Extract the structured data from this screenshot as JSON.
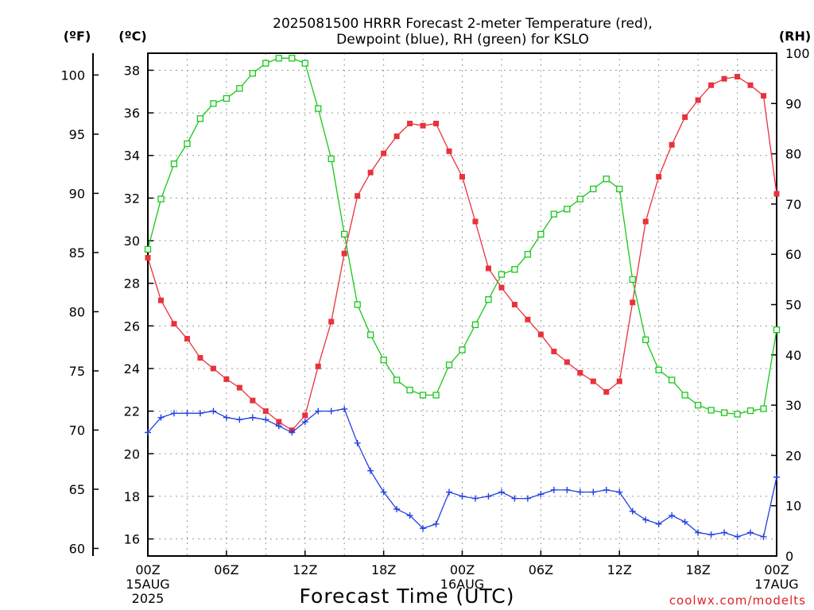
{
  "title_line1": "2025081500 HRRR Forecast 2-meter Temperature (red),",
  "title_line2": "Dewpoint (blue), RH (green) for KSLO",
  "units": {
    "fahrenheit": "(ºF)",
    "celsius": "(ºC)",
    "rh": "(RH)"
  },
  "xaxis_label": "Forecast Time (UTC)",
  "credit": "coolwx.com/modelts",
  "colors": {
    "temperature": "#e8323c",
    "dewpoint": "#2340e0",
    "rh": "#18c818"
  },
  "chart_data": {
    "type": "line",
    "x": [
      0,
      1,
      2,
      3,
      4,
      5,
      6,
      7,
      8,
      9,
      10,
      11,
      12,
      13,
      14,
      15,
      16,
      17,
      18,
      19,
      20,
      21,
      22,
      23,
      24,
      25,
      26,
      27,
      28,
      29,
      30,
      31,
      32,
      33,
      34,
      35,
      36,
      37,
      38,
      39,
      40,
      41,
      42,
      43,
      44,
      45,
      46,
      47,
      48
    ],
    "x_tick_hours": [
      0,
      6,
      12,
      18,
      24,
      30,
      36,
      42,
      48
    ],
    "x_tick_labels": [
      [
        "00Z",
        "15AUG",
        "2025"
      ],
      [
        "06Z"
      ],
      [
        "12Z"
      ],
      [
        "18Z"
      ],
      [
        "00Z",
        "16AUG"
      ],
      [
        "06Z"
      ],
      [
        "12Z"
      ],
      [
        "18Z"
      ],
      [
        "00Z",
        "17AUG"
      ]
    ],
    "y_celsius_range": [
      15.2,
      38.8
    ],
    "y_celsius_ticks": [
      16,
      18,
      20,
      22,
      24,
      26,
      28,
      30,
      32,
      34,
      36,
      38
    ],
    "y_fahrenheit_ticks": [
      60,
      65,
      70,
      75,
      80,
      85,
      90,
      95,
      100
    ],
    "y_rh_range": [
      0,
      100
    ],
    "y_rh_ticks": [
      0,
      10,
      20,
      30,
      40,
      50,
      60,
      70,
      80,
      90,
      100
    ],
    "grid": true,
    "series": [
      {
        "name": "Temperature",
        "axis": "celsius",
        "marker": "filled-square",
        "values": [
          29.2,
          27.2,
          26.1,
          25.4,
          24.5,
          24.0,
          23.5,
          23.1,
          22.5,
          22.0,
          21.5,
          21.1,
          21.8,
          24.1,
          26.2,
          29.4,
          32.1,
          33.2,
          34.1,
          34.9,
          35.5,
          35.4,
          35.5,
          34.2,
          33.0,
          30.9,
          28.7,
          27.8,
          27.0,
          26.3,
          25.6,
          24.8,
          24.3,
          23.8,
          23.4,
          22.9,
          23.4,
          27.1,
          30.9,
          33.0,
          34.5,
          35.8,
          36.6,
          37.3,
          37.6,
          37.7,
          37.3,
          36.8,
          32.2
        ]
      },
      {
        "name": "Dewpoint",
        "axis": "celsius",
        "marker": "plus",
        "values": [
          21.0,
          21.7,
          21.9,
          21.9,
          21.9,
          22.0,
          21.7,
          21.6,
          21.7,
          21.6,
          21.3,
          21.0,
          21.5,
          22.0,
          22.0,
          22.1,
          20.5,
          19.2,
          18.2,
          17.4,
          17.1,
          16.5,
          16.7,
          18.2,
          18.0,
          17.9,
          18.0,
          18.2,
          17.9,
          17.9,
          18.1,
          18.3,
          18.3,
          18.2,
          18.2,
          18.3,
          18.2,
          17.3,
          16.9,
          16.7,
          17.1,
          16.8,
          16.3,
          16.2,
          16.3,
          16.1,
          16.3,
          16.1,
          18.9
        ]
      },
      {
        "name": "RH",
        "axis": "rh",
        "marker": "open-square",
        "values": [
          61,
          71,
          78,
          82,
          87,
          90,
          91,
          93,
          96,
          98,
          99,
          99,
          98,
          89,
          79,
          64,
          50,
          44,
          39,
          35,
          33,
          32,
          32,
          38,
          41,
          46,
          51,
          56,
          57,
          60,
          64,
          68,
          69,
          71,
          73,
          75,
          73,
          55,
          43,
          37,
          35,
          32,
          30,
          29,
          28.5,
          28.2,
          28.9,
          29.3,
          45
        ]
      }
    ]
  }
}
